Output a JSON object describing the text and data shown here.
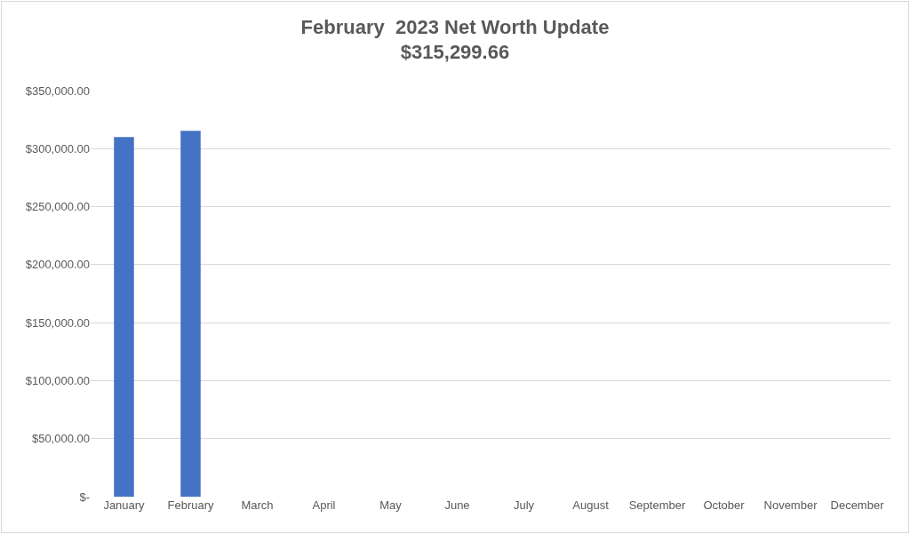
{
  "chart_data": {
    "type": "bar",
    "title": "February  2023 Net Worth Update",
    "subtitle": "$315,299.66",
    "categories": [
      "January",
      "February",
      "March",
      "April",
      "May",
      "June",
      "July",
      "August",
      "September",
      "October",
      "November",
      "December"
    ],
    "values": [
      310000,
      315300,
      null,
      null,
      null,
      null,
      null,
      null,
      null,
      null,
      null,
      null
    ],
    "color": "#4472c4",
    "ylim": [
      0,
      350000
    ],
    "yticks": [
      {
        "value": 0,
        "label": "$-"
      },
      {
        "value": 50000,
        "label": "$50,000.00"
      },
      {
        "value": 100000,
        "label": "$100,000.00"
      },
      {
        "value": 150000,
        "label": "$150,000.00"
      },
      {
        "value": 200000,
        "label": "$200,000.00"
      },
      {
        "value": 250000,
        "label": "$250,000.00"
      },
      {
        "value": 300000,
        "label": "$300,000.00"
      },
      {
        "value": 350000,
        "label": "$350,000.00"
      }
    ],
    "grid": "y",
    "legend": false
  }
}
